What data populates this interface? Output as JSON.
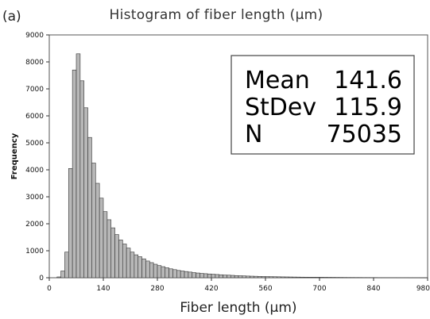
{
  "panel_label": "(a)",
  "chart_data": {
    "type": "bar",
    "title": "Histogram of fiber length (μm)",
    "xlabel": "Fiber length (μm)",
    "ylabel": "Frequency",
    "xlim": [
      0,
      980
    ],
    "ylim": [
      0,
      9000
    ],
    "x_ticks": [
      0,
      140,
      280,
      420,
      560,
      700,
      840,
      980
    ],
    "y_ticks": [
      0,
      1000,
      2000,
      3000,
      4000,
      5000,
      6000,
      7000,
      8000,
      9000
    ],
    "bin_width": 10,
    "bin_starts": [
      20,
      30,
      40,
      50,
      60,
      70,
      80,
      90,
      100,
      110,
      120,
      130,
      140,
      150,
      160,
      170,
      180,
      190,
      200,
      210,
      220,
      230,
      240,
      250,
      260,
      270,
      280,
      290,
      300,
      310,
      320,
      330,
      340,
      350,
      360,
      370,
      380,
      390,
      400,
      410,
      420,
      430,
      440,
      450,
      460,
      470,
      480,
      490,
      500,
      510,
      520,
      530,
      540,
      550,
      560,
      570,
      580,
      590,
      600,
      610,
      620,
      630,
      640,
      650,
      660,
      670,
      680,
      690,
      700,
      710,
      720,
      730,
      740,
      750,
      760,
      770,
      780,
      790,
      800,
      810,
      820,
      830,
      840,
      850,
      860,
      870,
      880,
      890,
      900,
      910,
      920,
      930,
      940,
      950,
      960,
      970
    ],
    "values": [
      30,
      250,
      950,
      4050,
      7700,
      8300,
      7300,
      6300,
      5200,
      4250,
      3500,
      2950,
      2450,
      2150,
      1850,
      1600,
      1400,
      1250,
      1100,
      950,
      850,
      780,
      700,
      620,
      560,
      500,
      450,
      410,
      370,
      330,
      300,
      270,
      250,
      230,
      210,
      190,
      175,
      160,
      150,
      140,
      130,
      120,
      110,
      100,
      95,
      88,
      80,
      74,
      68,
      62,
      58,
      54,
      50,
      46,
      43,
      40,
      37,
      35,
      32,
      30,
      28,
      26,
      24,
      22,
      21,
      20,
      19,
      18,
      17,
      16,
      15,
      14,
      13,
      12,
      11,
      10,
      10,
      9,
      9,
      8,
      8,
      7,
      7,
      6,
      6,
      5,
      5,
      5,
      4,
      4,
      4,
      3,
      3,
      3,
      2,
      2
    ],
    "stats": {
      "labels": [
        "Mean",
        "StDev",
        "N"
      ],
      "values": [
        "141.6",
        "115.9",
        "75035"
      ]
    }
  }
}
